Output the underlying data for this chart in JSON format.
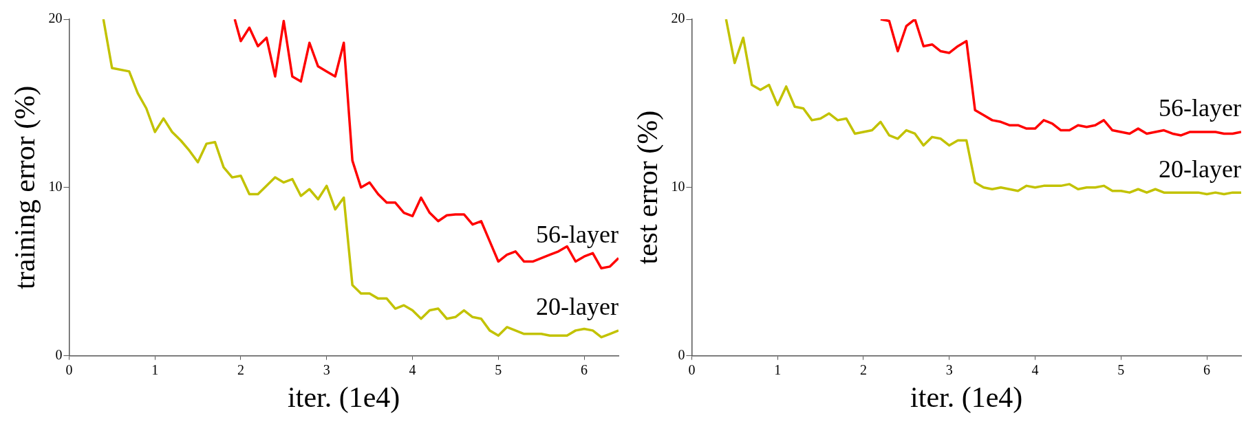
{
  "chart_data": [
    {
      "type": "line",
      "xlabel": "iter. (1e4)",
      "ylabel": "training error (%)",
      "xlim": [
        0,
        6.4
      ],
      "ylim": [
        0,
        20
      ],
      "xticks": [
        0,
        1,
        2,
        3,
        4,
        5,
        6
      ],
      "yticks": [
        0,
        10,
        20
      ],
      "marker": "none",
      "line_style": "solid",
      "series": [
        {
          "name": "56-layer",
          "color": "#ff0000",
          "x": [
            1.93,
            2.0,
            2.1,
            2.2,
            2.3,
            2.4,
            2.5,
            2.6,
            2.7,
            2.8,
            2.9,
            3.0,
            3.1,
            3.2,
            3.3,
            3.4,
            3.5,
            3.6,
            3.7,
            3.8,
            3.9,
            4.0,
            4.1,
            4.2,
            4.3,
            4.4,
            4.5,
            4.6,
            4.7,
            4.8,
            4.9,
            5.0,
            5.1,
            5.2,
            5.3,
            5.4,
            5.5,
            5.6,
            5.7,
            5.8,
            5.9,
            6.0,
            6.1,
            6.2,
            6.3,
            6.4
          ],
          "values": [
            20,
            18.7,
            19.5,
            18.4,
            18.9,
            16.6,
            19.9,
            16.6,
            16.3,
            18.6,
            17.2,
            16.9,
            16.6,
            18.6,
            11.6,
            10.0,
            10.3,
            9.6,
            9.1,
            9.1,
            8.5,
            8.3,
            9.4,
            8.5,
            8.0,
            8.35,
            8.4,
            8.4,
            7.8,
            8.0,
            6.8,
            5.6,
            6.0,
            6.2,
            5.6,
            5.6,
            5.8,
            6.0,
            6.2,
            6.5,
            5.6,
            5.9,
            6.1,
            5.2,
            5.3,
            5.8
          ]
        },
        {
          "name": "20-layer",
          "color": "#c2c200",
          "x": [
            0.4,
            0.5,
            0.7,
            0.8,
            0.9,
            1.0,
            1.1,
            1.2,
            1.3,
            1.4,
            1.5,
            1.6,
            1.7,
            1.8,
            1.9,
            2.0,
            2.1,
            2.2,
            2.3,
            2.4,
            2.5,
            2.6,
            2.7,
            2.8,
            2.9,
            3.0,
            3.1,
            3.2,
            3.3,
            3.4,
            3.5,
            3.6,
            3.7,
            3.8,
            3.9,
            4.0,
            4.1,
            4.2,
            4.3,
            4.4,
            4.5,
            4.6,
            4.7,
            4.8,
            4.9,
            5.0,
            5.1,
            5.2,
            5.3,
            5.4,
            5.5,
            5.6,
            5.7,
            5.8,
            5.9,
            6.0,
            6.1,
            6.2,
            6.3,
            6.4
          ],
          "values": [
            20,
            17.1,
            16.9,
            15.6,
            14.7,
            13.3,
            14.1,
            13.3,
            12.8,
            12.2,
            11.5,
            12.6,
            12.7,
            11.2,
            10.6,
            10.7,
            9.6,
            9.6,
            10.1,
            10.6,
            10.3,
            10.5,
            9.5,
            9.9,
            9.3,
            10.1,
            8.7,
            9.4,
            4.2,
            3.7,
            3.7,
            3.4,
            3.4,
            2.8,
            3.0,
            2.7,
            2.2,
            2.7,
            2.8,
            2.2,
            2.3,
            2.7,
            2.3,
            2.2,
            1.5,
            1.2,
            1.7,
            1.5,
            1.3,
            1.3,
            1.3,
            1.2,
            1.2,
            1.2,
            1.5,
            1.6,
            1.5,
            1.1,
            1.3,
            1.5
          ]
        }
      ]
    },
    {
      "type": "line",
      "xlabel": "iter. (1e4)",
      "ylabel": "test error (%)",
      "xlim": [
        0,
        6.4
      ],
      "ylim": [
        0,
        20
      ],
      "xticks": [
        0,
        1,
        2,
        3,
        4,
        5,
        6
      ],
      "yticks": [
        0,
        10,
        20
      ],
      "marker": "none",
      "line_style": "solid",
      "series": [
        {
          "name": "56-layer",
          "color": "#ff0000",
          "x": [
            2.2,
            2.3,
            2.4,
            2.5,
            2.6,
            2.7,
            2.8,
            2.9,
            3.0,
            3.1,
            3.2,
            3.3,
            3.4,
            3.5,
            3.6,
            3.7,
            3.8,
            3.9,
            4.0,
            4.1,
            4.2,
            4.3,
            4.4,
            4.5,
            4.6,
            4.7,
            4.8,
            4.9,
            5.0,
            5.1,
            5.2,
            5.3,
            5.4,
            5.5,
            5.6,
            5.7,
            5.8,
            5.9,
            6.0,
            6.1,
            6.2,
            6.3,
            6.4
          ],
          "values": [
            20,
            19.9,
            18.1,
            19.6,
            20,
            18.4,
            18.5,
            18.1,
            18.0,
            18.4,
            18.7,
            14.6,
            14.3,
            14.0,
            13.9,
            13.7,
            13.7,
            13.5,
            13.5,
            14.0,
            13.8,
            13.4,
            13.4,
            13.7,
            13.6,
            13.7,
            14.0,
            13.4,
            13.3,
            13.2,
            13.5,
            13.2,
            13.3,
            13.4,
            13.2,
            13.1,
            13.3,
            13.3,
            13.3,
            13.3,
            13.2,
            13.2,
            13.3
          ]
        },
        {
          "name": "20-layer",
          "color": "#c2c200",
          "x": [
            0.4,
            0.5,
            0.6,
            0.7,
            0.8,
            0.9,
            1.0,
            1.1,
            1.2,
            1.3,
            1.4,
            1.5,
            1.6,
            1.7,
            1.8,
            1.9,
            2.0,
            2.1,
            2.2,
            2.3,
            2.4,
            2.5,
            2.6,
            2.7,
            2.8,
            2.9,
            3.0,
            3.1,
            3.2,
            3.3,
            3.4,
            3.5,
            3.6,
            3.7,
            3.8,
            3.9,
            4.0,
            4.1,
            4.2,
            4.3,
            4.4,
            4.5,
            4.6,
            4.7,
            4.8,
            4.9,
            5.0,
            5.1,
            5.2,
            5.3,
            5.4,
            5.5,
            5.6,
            5.7,
            5.8,
            5.9,
            6.0,
            6.1,
            6.2,
            6.3,
            6.4
          ],
          "values": [
            20,
            17.4,
            18.9,
            16.1,
            15.8,
            16.1,
            14.9,
            16.0,
            14.8,
            14.7,
            14.0,
            14.1,
            14.4,
            14.0,
            14.1,
            13.2,
            13.3,
            13.4,
            13.9,
            13.1,
            12.9,
            13.4,
            13.2,
            12.5,
            13.0,
            12.9,
            12.5,
            12.8,
            12.8,
            10.3,
            10.0,
            9.9,
            10.0,
            9.9,
            9.8,
            10.1,
            10.0,
            10.1,
            10.1,
            10.1,
            10.2,
            9.9,
            10.0,
            10.0,
            10.1,
            9.8,
            9.8,
            9.7,
            9.9,
            9.7,
            9.9,
            9.7,
            9.7,
            9.7,
            9.7,
            9.7,
            9.6,
            9.7,
            9.6,
            9.7,
            9.7
          ]
        }
      ]
    }
  ]
}
